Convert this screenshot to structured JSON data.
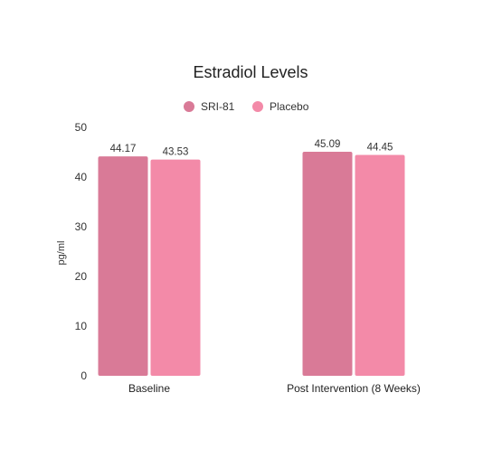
{
  "chart_data": {
    "type": "bar",
    "title": "Estradiol Levels",
    "xlabel": "",
    "ylabel": "pg/ml",
    "categories": [
      "Baseline",
      "Post Intervention (8 Weeks)"
    ],
    "series": [
      {
        "name": "SRI-81",
        "color": "#d97a97",
        "values": [
          44.17,
          45.09
        ],
        "labels": [
          "44.17",
          "45.09"
        ]
      },
      {
        "name": "Placebo",
        "color": "#f38aa8",
        "values": [
          43.53,
          44.45
        ],
        "labels": [
          "43.53",
          "44.45"
        ]
      }
    ],
    "ylim": [
      0,
      50
    ],
    "yticks": [
      "0",
      "10",
      "20",
      "30",
      "40",
      "50"
    ],
    "grid": false,
    "legend_position": "top-center"
  }
}
